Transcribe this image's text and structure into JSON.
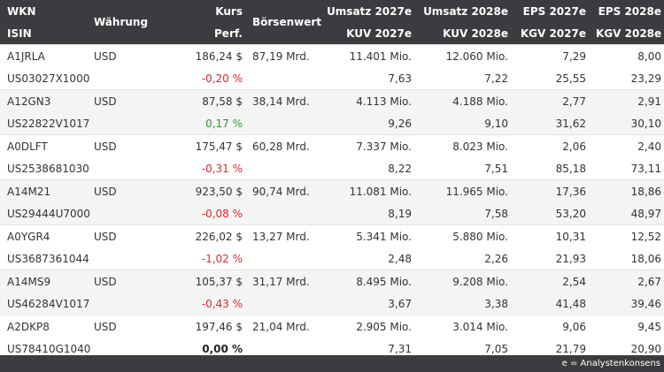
{
  "header": {
    "wkn": "WKN",
    "isin": "ISIN",
    "waehrung": "Währung",
    "kurs": "Kurs",
    "perf": "Perf.",
    "boersenwert": "Börsenwert",
    "umsatz2027": "Umsatz 2027e",
    "kuv2027": "KUV 2027e",
    "umsatz2028": "Umsatz 2028e",
    "kuv2028": "KUV 2028e",
    "eps2027": "EPS 2027e",
    "kgv2027": "KGV 2027e",
    "eps2028": "EPS 2028e",
    "kgv2028": "KGV 2028e"
  },
  "rows": [
    {
      "wkn": "A1JRLA",
      "isin": "US03027X1000",
      "currency": "USD",
      "kurs": "186,24 $",
      "perf": "-0,20 %",
      "perf_sign": "neg",
      "mcap": "87,19 Mrd.",
      "umsatz2027": "11.401 Mio.",
      "kuv2027": "7,63",
      "umsatz2028": "12.060 Mio.",
      "kuv2028": "7,22",
      "eps2027": "7,29",
      "kgv2027": "25,55",
      "eps2028": "8,00",
      "kgv2028": "23,29"
    },
    {
      "wkn": "A12GN3",
      "isin": "US22822V1017",
      "currency": "USD",
      "kurs": "87,58 $",
      "perf": "0,17 %",
      "perf_sign": "pos",
      "mcap": "38,14 Mrd.",
      "umsatz2027": "4.113 Mio.",
      "kuv2027": "9,26",
      "umsatz2028": "4.188 Mio.",
      "kuv2028": "9,10",
      "eps2027": "2,77",
      "kgv2027": "31,62",
      "eps2028": "2,91",
      "kgv2028": "30,10"
    },
    {
      "wkn": "A0DLFT",
      "isin": "US2538681030",
      "currency": "USD",
      "kurs": "175,47 $",
      "perf": "-0,31 %",
      "perf_sign": "neg",
      "mcap": "60,28 Mrd.",
      "umsatz2027": "7.337 Mio.",
      "kuv2027": "8,22",
      "umsatz2028": "8.023 Mio.",
      "kuv2028": "7,51",
      "eps2027": "2,06",
      "kgv2027": "85,18",
      "eps2028": "2,40",
      "kgv2028": "73,11"
    },
    {
      "wkn": "A14M21",
      "isin": "US29444U7000",
      "currency": "USD",
      "kurs": "923,50 $",
      "perf": "-0,08 %",
      "perf_sign": "neg",
      "mcap": "90,74 Mrd.",
      "umsatz2027": "11.081 Mio.",
      "kuv2027": "8,19",
      "umsatz2028": "11.965 Mio.",
      "kuv2028": "7,58",
      "eps2027": "17,36",
      "kgv2027": "53,20",
      "eps2028": "18,86",
      "kgv2028": "48,97"
    },
    {
      "wkn": "A0YGR4",
      "isin": "US3687361044",
      "currency": "USD",
      "kurs": "226,02 $",
      "perf": "-1,02 %",
      "perf_sign": "neg",
      "mcap": "13,27 Mrd.",
      "umsatz2027": "5.341 Mio.",
      "kuv2027": "2,48",
      "umsatz2028": "5.880 Mio.",
      "kuv2028": "2,26",
      "eps2027": "10,31",
      "kgv2027": "21,93",
      "eps2028": "12,52",
      "kgv2028": "18,06"
    },
    {
      "wkn": "A14MS9",
      "isin": "US46284V1017",
      "currency": "USD",
      "kurs": "105,37 $",
      "perf": "-0,43 %",
      "perf_sign": "neg",
      "mcap": "31,17 Mrd.",
      "umsatz2027": "8.495 Mio.",
      "kuv2027": "3,67",
      "umsatz2028": "9.208 Mio.",
      "kuv2028": "3,38",
      "eps2027": "2,54",
      "kgv2027": "41,48",
      "eps2028": "2,67",
      "kgv2028": "39,46"
    },
    {
      "wkn": "A2DKP8",
      "isin": "US78410G1040",
      "currency": "USD",
      "kurs": "197,46 $",
      "perf": "0,00 %",
      "perf_sign": "flat",
      "mcap": "21,04 Mrd.",
      "umsatz2027": "2.905 Mio.",
      "kuv2027": "7,31",
      "umsatz2028": "3.014 Mio.",
      "kuv2028": "7,05",
      "eps2027": "9,06",
      "kgv2027": "21,79",
      "eps2028": "9,45",
      "kgv2028": "20,90"
    }
  ],
  "footer": {
    "note": "e = Analystenkonsens"
  }
}
